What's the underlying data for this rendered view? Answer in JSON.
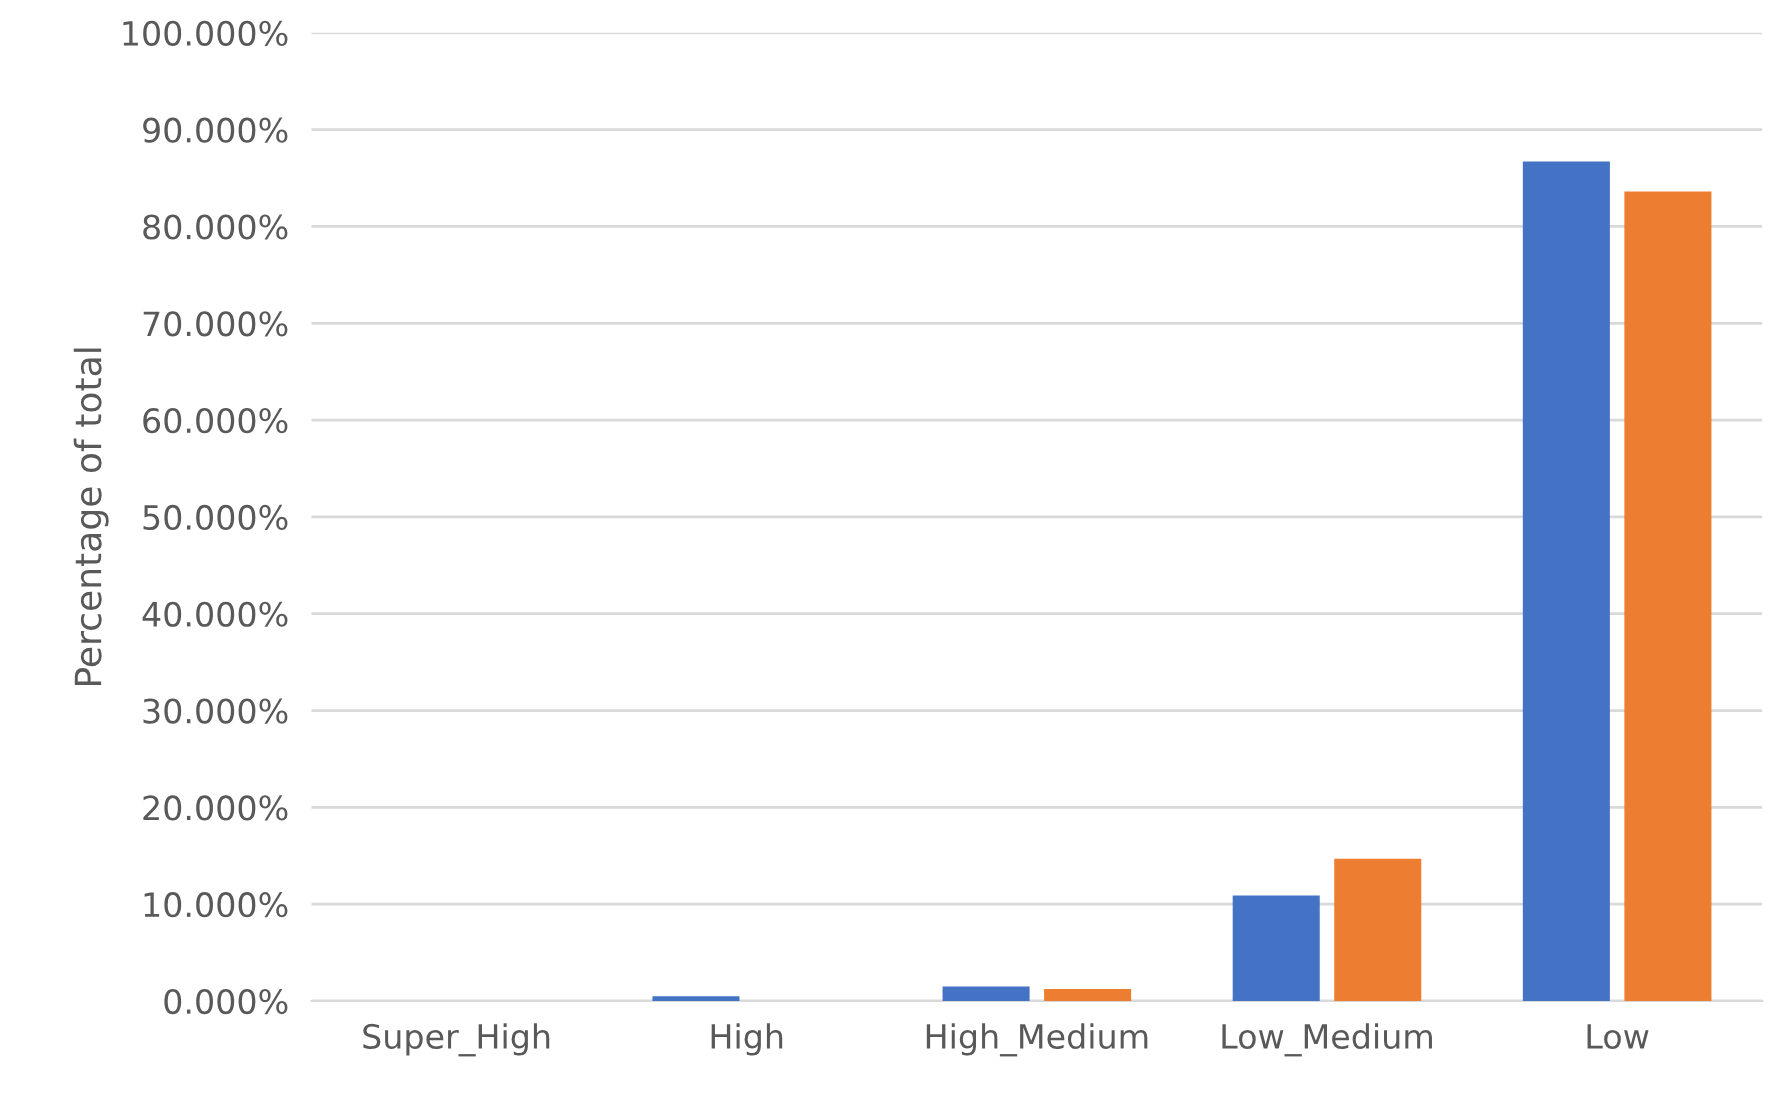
{
  "chart_data": {
    "type": "bar",
    "ylabel": "Percentage of total",
    "categories": [
      "Super_High",
      "High",
      "High_Medium",
      "Low_Medium",
      "Low"
    ],
    "series": [
      {
        "color": "#4472c4",
        "values": [
          0,
          0.5,
          1.5,
          10.9,
          86.7
        ]
      },
      {
        "color": "#ed7d31",
        "values": [
          0,
          0,
          1.25,
          14.7,
          83.6
        ]
      }
    ],
    "ylim": [
      0,
      100
    ],
    "yticks": [
      {
        "value": 0,
        "label": "0.000%"
      },
      {
        "value": 10,
        "label": "10.000%"
      },
      {
        "value": 20,
        "label": "20.000%"
      },
      {
        "value": 30,
        "label": "30.000%"
      },
      {
        "value": 40,
        "label": "40.000%"
      },
      {
        "value": 50,
        "label": "50.000%"
      },
      {
        "value": 60,
        "label": "60.000%"
      },
      {
        "value": 70,
        "label": "70.000%"
      },
      {
        "value": 80,
        "label": "80.000%"
      },
      {
        "value": 90,
        "label": "90.000%"
      },
      {
        "value": 100,
        "label": "100.000%"
      }
    ],
    "grid": "y",
    "legend": false
  }
}
